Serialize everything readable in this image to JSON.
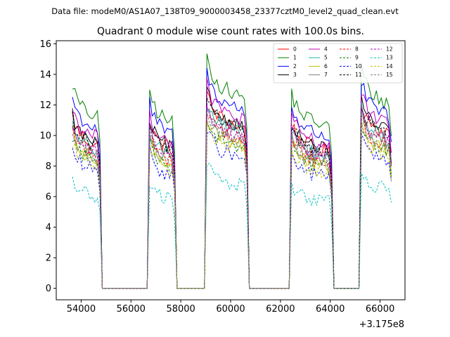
{
  "chart_data": {
    "type": "line",
    "suptitle": "Data file: modeM0/AS1A07_138T09_9000003458_23377cztM0_level2_quad_clean.evt",
    "title": "Quadrant 0 module wise count rates with 100.0s bins.",
    "xlabel": "",
    "ylabel": "",
    "x_offset_label": "+3.175e8",
    "xlim": [
      53000,
      67000
    ],
    "ylim": [
      -0.75,
      16.2
    ],
    "x_ticks": [
      54000,
      56000,
      58000,
      60000,
      62000,
      64000,
      66000
    ],
    "x_tick_labels": [
      "54000",
      "56000",
      "58000",
      "60000",
      "62000",
      "64000",
      "66000"
    ],
    "y_ticks": [
      0,
      2,
      4,
      6,
      8,
      10,
      12,
      14,
      16
    ],
    "y_tick_labels": [
      "0",
      "2",
      "4",
      "6",
      "8",
      "10",
      "12",
      "14",
      "16"
    ],
    "grid": false,
    "legend_position": "top-right",
    "legend_columns": 4,
    "segments": [
      [
        53650,
        54750
      ],
      [
        56750,
        57750
      ],
      [
        59050,
        60650
      ],
      [
        62450,
        64050
      ],
      [
        65250,
        66450
      ]
    ],
    "series": [
      {
        "name": "0",
        "color": "#ff0000",
        "dashed": false,
        "level": 10.1
      },
      {
        "name": "1",
        "color": "#008000",
        "dashed": false,
        "level": 12.0
      },
      {
        "name": "2",
        "color": "#0000ff",
        "dashed": false,
        "level": 11.2
      },
      {
        "name": "3",
        "color": "#000000",
        "dashed": false,
        "level": 10.2
      },
      {
        "name": "4",
        "color": "#bf00bf",
        "dashed": false,
        "level": 10.6
      },
      {
        "name": "5",
        "color": "#20b2aa",
        "dashed": false,
        "level": 9.7
      },
      {
        "name": "6",
        "color": "#bfbf00",
        "dashed": false,
        "level": 9.0
      },
      {
        "name": "7",
        "color": "#808080",
        "dashed": false,
        "level": 9.5
      },
      {
        "name": "8",
        "color": "#ff0000",
        "dashed": true,
        "level": 9.3
      },
      {
        "name": "9",
        "color": "#008000",
        "dashed": true,
        "level": 8.9
      },
      {
        "name": "10",
        "color": "#0000ff",
        "dashed": true,
        "level": 8.2
      },
      {
        "name": "11",
        "color": "#000000",
        "dashed": true,
        "level": 10.0
      },
      {
        "name": "12",
        "color": "#bf00bf",
        "dashed": true,
        "level": 9.6
      },
      {
        "name": "13",
        "color": "#00bfbf",
        "dashed": true,
        "level": 6.4
      },
      {
        "name": "14",
        "color": "#bfbf00",
        "dashed": true,
        "level": 8.6
      },
      {
        "name": "15",
        "color": "#808080",
        "dashed": true,
        "level": 9.1
      }
    ]
  }
}
